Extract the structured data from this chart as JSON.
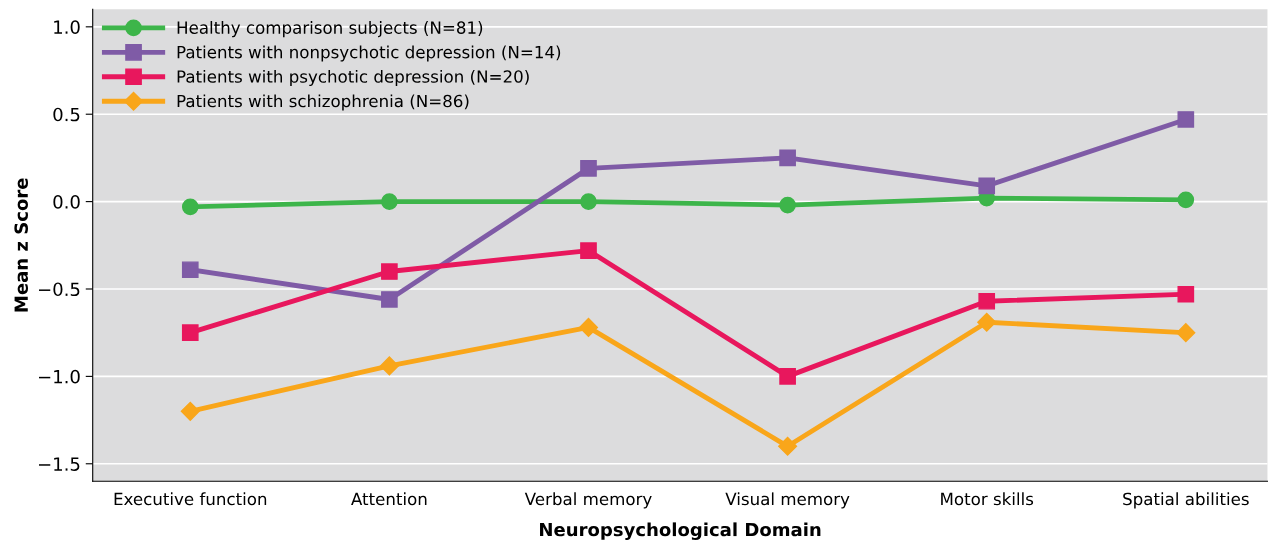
{
  "chart_data": {
    "type": "line",
    "xlabel": "Neuropsychological Domain",
    "ylabel": "Mean z Score",
    "categories": [
      "Executive function",
      "Attention",
      "Verbal memory",
      "Visual memory",
      "Motor skills",
      "Spatial abilities"
    ],
    "series": [
      {
        "name": "Healthy comparison subjects (N=81)",
        "color": "#3db54a",
        "marker": "circle",
        "values": [
          -0.03,
          0.0,
          0.0,
          -0.02,
          0.02,
          0.01
        ]
      },
      {
        "name": "Patients with nonpsychotic depression (N=14)",
        "color": "#7f5ba6",
        "marker": "square",
        "values": [
          -0.39,
          -0.56,
          0.19,
          0.25,
          0.09,
          0.47
        ]
      },
      {
        "name": "Patients with psychotic depression (N=20)",
        "color": "#e8175d",
        "marker": "square",
        "values": [
          -0.75,
          -0.4,
          -0.28,
          -1.0,
          -0.57,
          -0.53
        ]
      },
      {
        "name": "Patients with schizophrenia (N=86)",
        "color": "#f9a61a",
        "marker": "diamond",
        "values": [
          -1.2,
          -0.94,
          -0.72,
          -1.4,
          -0.69,
          -0.75
        ]
      }
    ],
    "ylim": [
      -1.6,
      1.1
    ],
    "yticks": [
      {
        "value": -1.5,
        "label": "−1.5"
      },
      {
        "value": -1.0,
        "label": "−1.0"
      },
      {
        "value": -0.5,
        "label": "−0.5"
      },
      {
        "value": 0.0,
        "label": "0.0"
      },
      {
        "value": 0.5,
        "label": "0.5"
      },
      {
        "value": 1.0,
        "label": "1.0"
      }
    ],
    "grid": "y",
    "legend": "top left",
    "line_style": "solid"
  }
}
